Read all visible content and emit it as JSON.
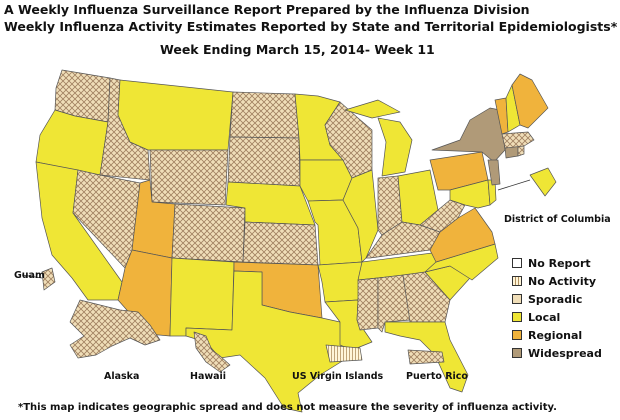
{
  "title_line1": "A Weekly Influenza Surveillance Report Prepared by the Influenza Division",
  "title_line2": "Weekly Influenza Activity Estimates Reported by State and Territorial Epidemiologists*",
  "title_line3": "Week Ending March 15, 2014- Week 11",
  "footnote": "*This map indicates geographic spread and does not measure the severity of influenza activity.",
  "map_labels": {
    "dc": "District of Columbia",
    "guam": "Guam",
    "alaska": "Alaska",
    "hawaii": "Hawaii",
    "usvi": "US Virgin Islands",
    "pr": "Puerto Rico"
  },
  "legend": [
    {
      "label": "No Report",
      "fill": "#ffffff",
      "pattern": "none"
    },
    {
      "label": "No Activity",
      "fill": "#fff5d8",
      "pattern": "vlines"
    },
    {
      "label": "Sporadic",
      "fill": "#f0deb8",
      "pattern": "cross"
    },
    {
      "label": "Local",
      "fill": "#efe635",
      "pattern": "none"
    },
    {
      "label": "Regional",
      "fill": "#f0b33c",
      "pattern": "none"
    },
    {
      "label": "Widespread",
      "fill": "#b09a78",
      "pattern": "none"
    }
  ],
  "colors": {
    "local": "#efe635",
    "regional": "#f0b33c",
    "widespread": "#b09a78",
    "sporadic_bg": "#f0deb8",
    "sporadic_line": "#a08060",
    "noactivity_bg": "#fff5d8",
    "noactivity_line": "#b09060",
    "border": "#555555"
  },
  "activity_by_state": {
    "Washington": "Sporadic",
    "Oregon": "Local",
    "California": "Local",
    "Idaho": "Sporadic",
    "Nevada": "Sporadic",
    "Montana": "Local",
    "Wyoming": "Sporadic",
    "Utah": "Regional",
    "Arizona": "Regional",
    "Colorado": "Sporadic",
    "New Mexico": "Local",
    "North Dakota": "Sporadic",
    "South Dakota": "Sporadic",
    "Nebraska": "Local",
    "Kansas": "Sporadic",
    "Oklahoma": "Regional",
    "Texas": "Local",
    "Minnesota": "Local",
    "Iowa": "Local",
    "Missouri": "Local",
    "Arkansas": "Local",
    "Louisiana": "Local",
    "Wisconsin": "Sporadic",
    "Illinois": "Local",
    "Michigan": "Local",
    "Indiana": "Sporadic",
    "Ohio": "Local",
    "Kentucky": "Sporadic",
    "Tennessee": "Local",
    "Mississippi": "Sporadic",
    "Alabama": "Sporadic",
    "Georgia": "Sporadic",
    "Florida": "Local",
    "South Carolina": "Local",
    "North Carolina": "Local",
    "Virginia": "Regional",
    "West Virginia": "Sporadic",
    "Pennsylvania": "Regional",
    "New York": "Widespread",
    "Maryland": "Local",
    "Delaware": "Local",
    "New Jersey": "Widespread",
    "Connecticut": "Widespread",
    "Rhode Island": "Sporadic",
    "Massachusetts": "Sporadic",
    "Vermont": "Regional",
    "New Hampshire": "Local",
    "Maine": "Regional",
    "District of Columbia": "Local",
    "Alaska": "Sporadic",
    "Hawaii": "Sporadic",
    "Guam": "Sporadic",
    "Puerto Rico": "Sporadic",
    "US Virgin Islands": "No Activity"
  }
}
